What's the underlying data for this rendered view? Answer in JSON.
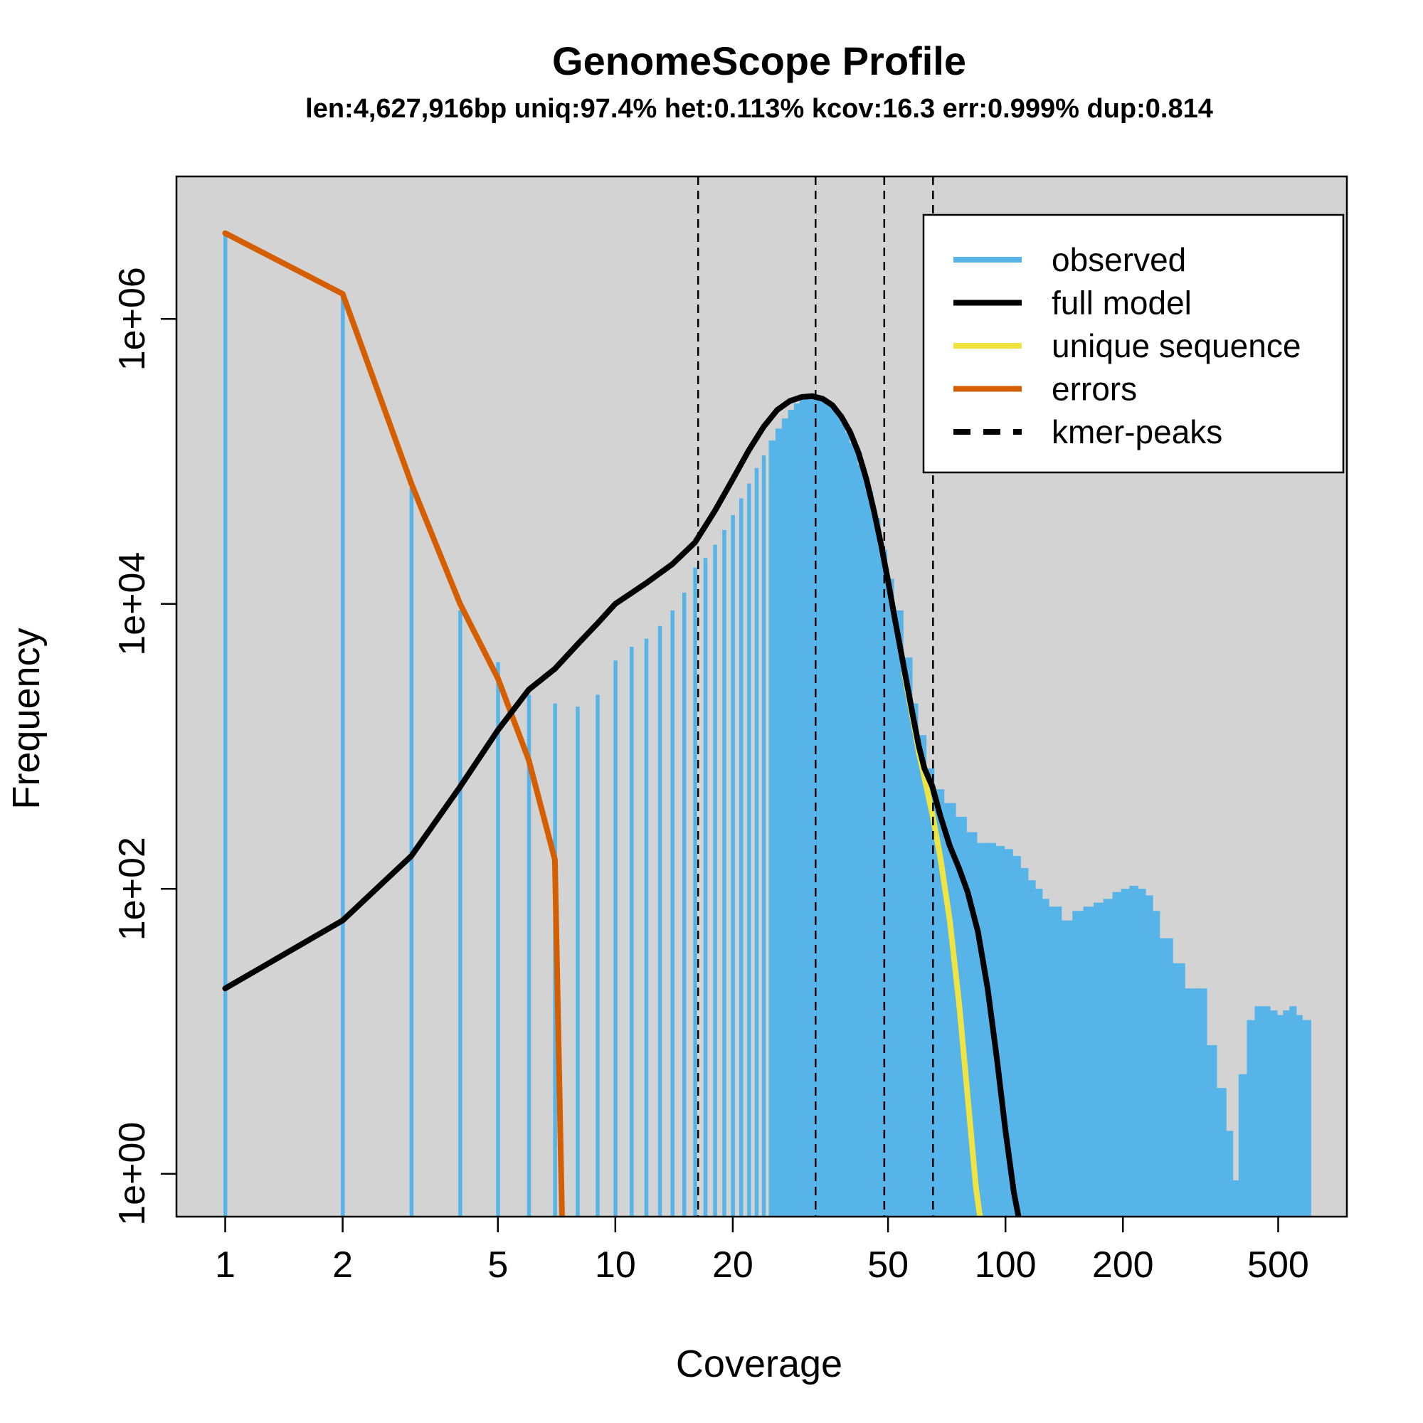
{
  "chart_data": {
    "type": "bar",
    "title": "GenomeScope Profile",
    "subtitle": "len:4,627,916bp uniq:97.4% het:0.113% kcov:16.3 err:0.999% dup:0.814",
    "xlabel": "Coverage",
    "ylabel": "Frequency",
    "x_scale": "log",
    "y_scale": "log",
    "xlim": [
      0.75,
      750
    ],
    "ylim": [
      0.5,
      10000000
    ],
    "x_ticks": [
      {
        "value": 1,
        "label": "1"
      },
      {
        "value": 2,
        "label": "2"
      },
      {
        "value": 5,
        "label": "5"
      },
      {
        "value": 10,
        "label": "10"
      },
      {
        "value": 20,
        "label": "20"
      },
      {
        "value": 50,
        "label": "50"
      },
      {
        "value": 100,
        "label": "100"
      },
      {
        "value": 200,
        "label": "200"
      },
      {
        "value": 500,
        "label": "500"
      }
    ],
    "y_ticks": [
      {
        "value": 1,
        "label": "1e+00"
      },
      {
        "value": 100,
        "label": "1e+02"
      },
      {
        "value": 10000,
        "label": "1e+04"
      },
      {
        "value": 1000000,
        "label": "1e+06"
      }
    ],
    "grid": false,
    "background_color": "#d3d3d3",
    "legend_position": "top-right",
    "legend": [
      {
        "label": "observed",
        "color": "#56b4e9",
        "style": "solid"
      },
      {
        "label": "full model",
        "color": "#000000",
        "style": "solid"
      },
      {
        "label": "unique sequence",
        "color": "#f0e442",
        "style": "solid"
      },
      {
        "label": "errors",
        "color": "#d55e00",
        "style": "solid"
      },
      {
        "label": "kmer-peaks",
        "color": "#000000",
        "style": "dashed"
      }
    ],
    "kmer_peaks": [
      16.3,
      32.6,
      48.9,
      65.2
    ],
    "series": [
      {
        "name": "observed",
        "kind": "bars",
        "color": "#56b4e9",
        "points": [
          [
            1,
            4000000
          ],
          [
            2,
            1500000
          ],
          [
            3,
            65000
          ],
          [
            4,
            9000
          ],
          [
            5,
            3900
          ],
          [
            6,
            2300
          ],
          [
            7,
            2000
          ],
          [
            8,
            1900
          ],
          [
            9,
            2300
          ],
          [
            10,
            4000
          ],
          [
            11,
            5000
          ],
          [
            12,
            5700
          ],
          [
            13,
            7000
          ],
          [
            14,
            9000
          ],
          [
            15,
            12000
          ],
          [
            16,
            18000
          ],
          [
            17,
            21000
          ],
          [
            18,
            26000
          ],
          [
            19,
            33000
          ],
          [
            20,
            42000
          ],
          [
            21,
            55000
          ],
          [
            22,
            70000
          ],
          [
            23,
            90000
          ],
          [
            24,
            110000
          ],
          [
            25,
            140000
          ],
          [
            26,
            170000
          ],
          [
            27,
            200000
          ],
          [
            28,
            230000
          ],
          [
            29,
            255000
          ],
          [
            30,
            270000
          ],
          [
            31,
            280000
          ],
          [
            32,
            285000
          ],
          [
            33,
            280000
          ],
          [
            34,
            270000
          ],
          [
            35,
            255000
          ],
          [
            36,
            235000
          ],
          [
            37,
            210000
          ],
          [
            38,
            185000
          ],
          [
            39,
            160000
          ],
          [
            40,
            135000
          ],
          [
            42,
            95000
          ],
          [
            44,
            62000
          ],
          [
            46,
            40000
          ],
          [
            48,
            24000
          ],
          [
            50,
            15000
          ],
          [
            52,
            9000
          ],
          [
            55,
            4200
          ],
          [
            58,
            2000
          ],
          [
            60,
            1200
          ],
          [
            63,
            700
          ],
          [
            66,
            500
          ],
          [
            70,
            400
          ],
          [
            75,
            320
          ],
          [
            80,
            250
          ],
          [
            85,
            210
          ],
          [
            90,
            210
          ],
          [
            95,
            200
          ],
          [
            100,
            190
          ],
          [
            105,
            170
          ],
          [
            110,
            140
          ],
          [
            115,
            115
          ],
          [
            120,
            100
          ],
          [
            125,
            85
          ],
          [
            130,
            75
          ],
          [
            140,
            60
          ],
          [
            150,
            70
          ],
          [
            160,
            75
          ],
          [
            170,
            80
          ],
          [
            180,
            85
          ],
          [
            190,
            95
          ],
          [
            200,
            100
          ],
          [
            210,
            105
          ],
          [
            220,
            100
          ],
          [
            230,
            90
          ],
          [
            240,
            70
          ],
          [
            250,
            45
          ],
          [
            270,
            30
          ],
          [
            290,
            20
          ],
          [
            310,
            20
          ],
          [
            330,
            8
          ],
          [
            350,
            4
          ],
          [
            370,
            2
          ],
          [
            385,
            0.9
          ],
          [
            400,
            5
          ],
          [
            420,
            12
          ],
          [
            440,
            15
          ],
          [
            460,
            15
          ],
          [
            480,
            14
          ],
          [
            500,
            13
          ],
          [
            520,
            14
          ],
          [
            540,
            15
          ],
          [
            560,
            13
          ],
          [
            580,
            12
          ],
          [
            600,
            12
          ]
        ]
      },
      {
        "name": "full model",
        "kind": "line",
        "color": "#000000",
        "points": [
          [
            1,
            20
          ],
          [
            2,
            60
          ],
          [
            3,
            170
          ],
          [
            4,
            520
          ],
          [
            5,
            1300
          ],
          [
            6,
            2500
          ],
          [
            7,
            3500
          ],
          [
            8,
            5200
          ],
          [
            9,
            7300
          ],
          [
            10,
            10000
          ],
          [
            12,
            14000
          ],
          [
            14,
            19000
          ],
          [
            16,
            27000
          ],
          [
            18,
            45000
          ],
          [
            20,
            75000
          ],
          [
            22,
            120000
          ],
          [
            24,
            175000
          ],
          [
            26,
            230000
          ],
          [
            28,
            265000
          ],
          [
            30,
            283000
          ],
          [
            32,
            287000
          ],
          [
            34,
            275000
          ],
          [
            36,
            248000
          ],
          [
            38,
            205000
          ],
          [
            40,
            160000
          ],
          [
            42,
            115000
          ],
          [
            44,
            75000
          ],
          [
            46,
            45000
          ],
          [
            48,
            26000
          ],
          [
            50,
            14500
          ],
          [
            52,
            8000
          ],
          [
            55,
            3500
          ],
          [
            58,
            1600
          ],
          [
            60,
            1000
          ],
          [
            62,
            700
          ],
          [
            65,
            520
          ],
          [
            68,
            330
          ],
          [
            72,
            200
          ],
          [
            76,
            140
          ],
          [
            80,
            95
          ],
          [
            85,
            50
          ],
          [
            90,
            20
          ],
          [
            95,
            6.5
          ],
          [
            100,
            2
          ],
          [
            105,
            0.75
          ],
          [
            108,
            0.5
          ]
        ]
      },
      {
        "name": "unique sequence",
        "kind": "line",
        "color": "#f0e442",
        "points": [
          [
            55,
            3300
          ],
          [
            58,
            1500
          ],
          [
            60,
            900
          ],
          [
            62,
            600
          ],
          [
            65,
            330
          ],
          [
            68,
            170
          ],
          [
            72,
            60
          ],
          [
            76,
            16
          ],
          [
            80,
            3.5
          ],
          [
            84,
            0.8
          ],
          [
            86,
            0.5
          ]
        ]
      },
      {
        "name": "errors",
        "kind": "line",
        "color": "#d55e00",
        "points": [
          [
            1,
            4000000
          ],
          [
            2,
            1500000
          ],
          [
            3,
            70000
          ],
          [
            4,
            10000
          ],
          [
            5,
            3000
          ],
          [
            6,
            800
          ],
          [
            7,
            160
          ],
          [
            7.3,
            0.5
          ]
        ]
      }
    ]
  }
}
